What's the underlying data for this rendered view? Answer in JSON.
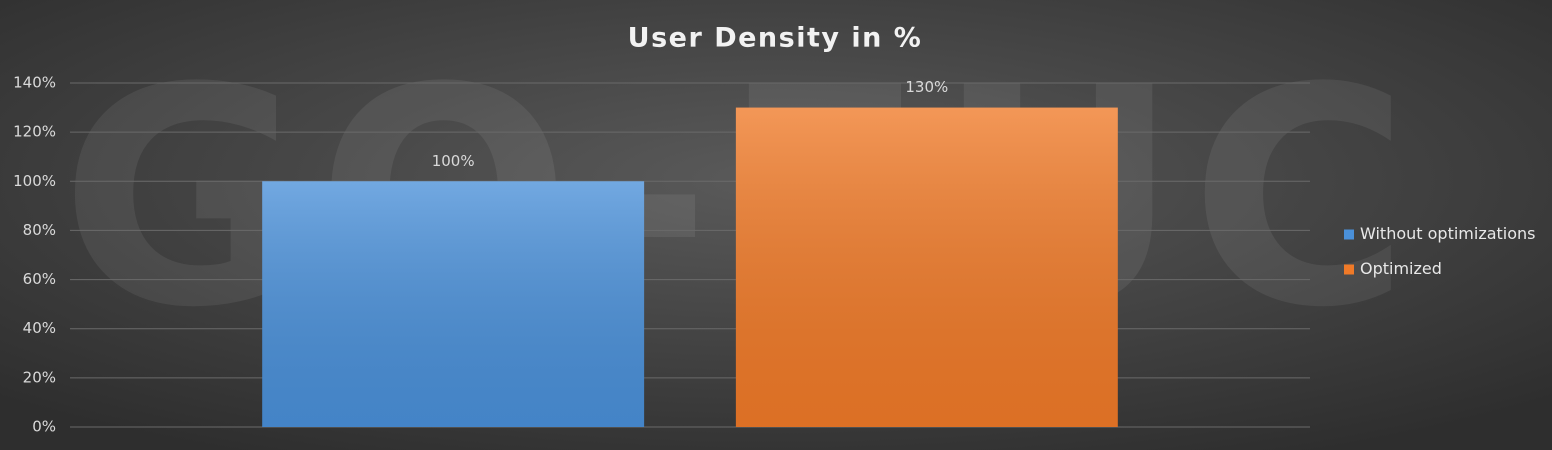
{
  "chart_data": {
    "type": "bar",
    "title": "User Density in %",
    "watermark": "GO-EUC",
    "categories": [
      null
    ],
    "series": [
      {
        "name": "Without optimizations",
        "color": "#4a90d9",
        "values": [
          100
        ],
        "value_labels": [
          "100%"
        ]
      },
      {
        "name": "Optimized",
        "color": "#f07a28",
        "values": [
          130
        ],
        "value_labels": [
          "130%"
        ]
      }
    ],
    "ylim": [
      0,
      140
    ],
    "yticks": [
      {
        "value": 0,
        "label": "0%"
      },
      {
        "value": 20,
        "label": "20%"
      },
      {
        "value": 40,
        "label": "40%"
      },
      {
        "value": 60,
        "label": "60%"
      },
      {
        "value": 80,
        "label": "80%"
      },
      {
        "value": 100,
        "label": "100%"
      },
      {
        "value": 120,
        "label": "120%"
      },
      {
        "value": 140,
        "label": "140%"
      }
    ],
    "grid": true,
    "legend": "right"
  }
}
